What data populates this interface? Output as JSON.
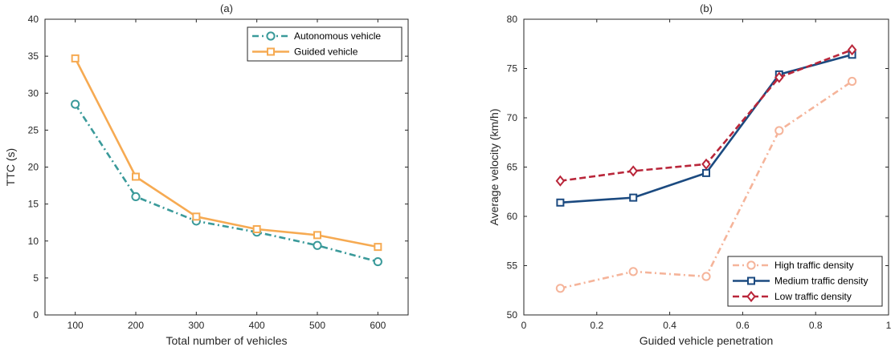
{
  "chart_data": [
    {
      "type": "line",
      "title": "(a)",
      "xlabel": "Total number of vehicles",
      "ylabel": "TTC (s)",
      "x": [
        100,
        200,
        300,
        400,
        500,
        600
      ],
      "xlim": [
        50,
        650
      ],
      "ylim": [
        0,
        40
      ],
      "xticks": [
        100,
        200,
        300,
        400,
        500,
        600
      ],
      "yticks": [
        0,
        5,
        10,
        15,
        20,
        25,
        30,
        35,
        40
      ],
      "legend_position": "top-right",
      "series": [
        {
          "name": "Autonomous vehicle",
          "values": [
            28.5,
            16.0,
            12.7,
            11.2,
            9.4,
            7.2
          ],
          "color": "#3a9a9a",
          "dash": "8,4,2,4",
          "marker": "circle"
        },
        {
          "name": "Guided vehicle",
          "values": [
            34.7,
            18.7,
            13.3,
            11.6,
            10.8,
            9.2
          ],
          "color": "#f6aa52",
          "dash": "",
          "marker": "square"
        }
      ]
    },
    {
      "type": "line",
      "title": "(b)",
      "xlabel": "Guided vehicle penetration",
      "ylabel": "Average velocity (km/h)",
      "x": [
        0.1,
        0.3,
        0.5,
        0.7,
        0.9
      ],
      "xlim": [
        0,
        1
      ],
      "ylim": [
        50,
        80
      ],
      "xticks": [
        0,
        0.2,
        0.4,
        0.6,
        0.8,
        1
      ],
      "xtick_labels": [
        "0",
        "0.2",
        "0.4",
        "0.6",
        "0.8",
        "1"
      ],
      "yticks": [
        50,
        55,
        60,
        65,
        70,
        75,
        80
      ],
      "legend_position": "bottom-right",
      "series": [
        {
          "name": "High traffic density",
          "values": [
            52.7,
            54.4,
            53.9,
            68.7,
            73.7
          ],
          "color": "#f5b49a",
          "dash": "8,4,2,4",
          "marker": "circle"
        },
        {
          "name": "Medium traffic density",
          "values": [
            61.4,
            61.9,
            64.4,
            74.4,
            76.4
          ],
          "color": "#1b4a80",
          "dash": "",
          "marker": "square"
        },
        {
          "name": "Low traffic density",
          "values": [
            63.6,
            64.6,
            65.3,
            74.1,
            76.9
          ],
          "color": "#b9263a",
          "dash": "8,4",
          "marker": "diamond"
        }
      ]
    }
  ]
}
